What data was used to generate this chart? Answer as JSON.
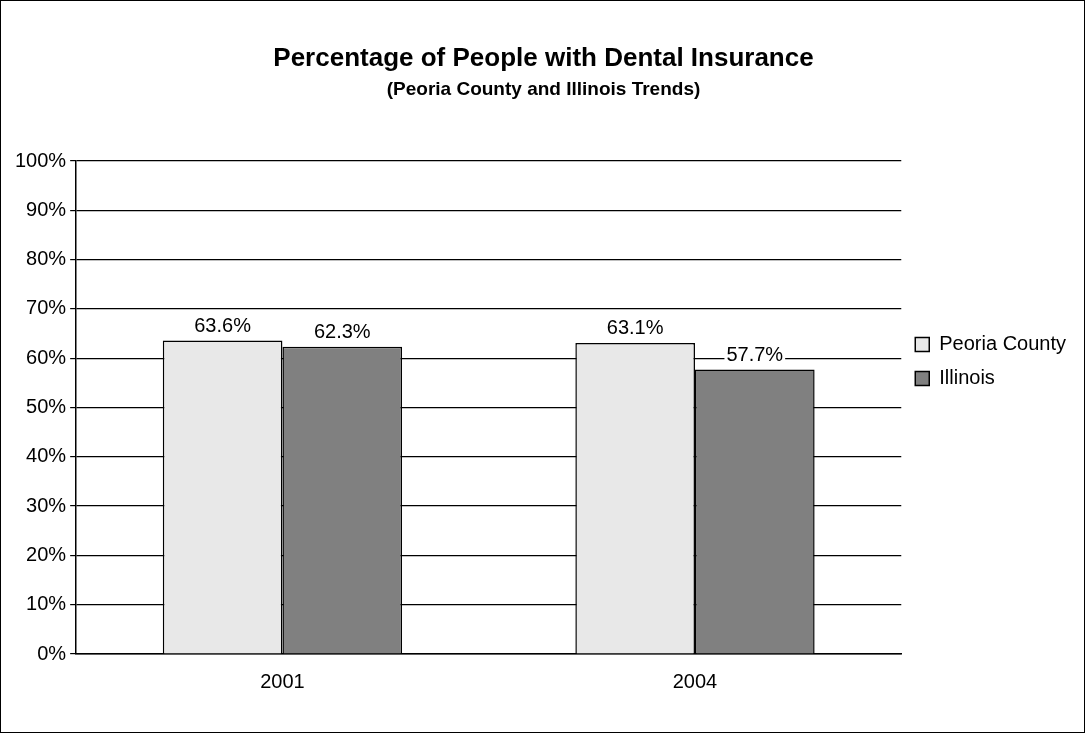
{
  "chart_data": {
    "type": "bar",
    "title": "Percentage of People with Dental Insurance",
    "subtitle": "(Peoria County and Illinois Trends)",
    "categories": [
      "2001",
      "2004"
    ],
    "series": [
      {
        "name": "Peoria County",
        "color": "#e8e8e8",
        "values": [
          63.6,
          63.1
        ],
        "value_labels": [
          "63.6%",
          "63.1%"
        ]
      },
      {
        "name": "Illinois",
        "color": "#808080",
        "values": [
          62.3,
          57.7
        ],
        "value_labels": [
          "62.3%",
          "57.7%"
        ]
      }
    ],
    "ylim": [
      0,
      100
    ],
    "yticks": [
      {
        "value": 0,
        "label": "0%"
      },
      {
        "value": 10,
        "label": "10%"
      },
      {
        "value": 20,
        "label": "20%"
      },
      {
        "value": 30,
        "label": "30%"
      },
      {
        "value": 40,
        "label": "40%"
      },
      {
        "value": 50,
        "label": "50%"
      },
      {
        "value": 60,
        "label": "60%"
      },
      {
        "value": 70,
        "label": "70%"
      },
      {
        "value": 80,
        "label": "80%"
      },
      {
        "value": 90,
        "label": "90%"
      },
      {
        "value": 100,
        "label": "100%"
      }
    ],
    "grid": "y",
    "legend": "right"
  }
}
